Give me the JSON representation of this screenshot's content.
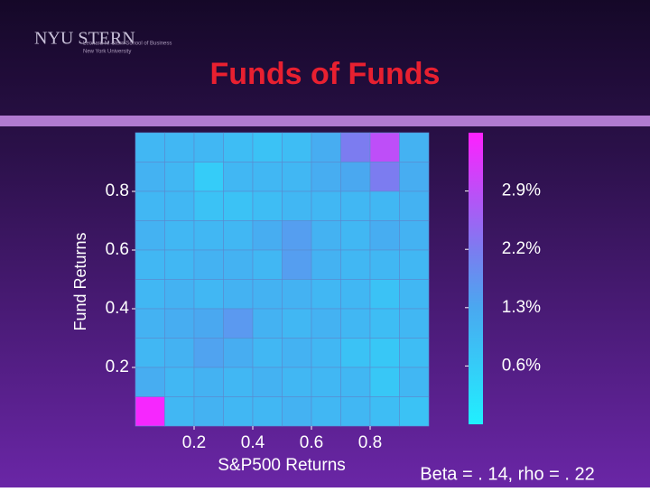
{
  "logo": {
    "name": "NYU STERN",
    "school": "Leonard N. Stern School of Business",
    "university": "New York University"
  },
  "chart_data": {
    "type": "heatmap",
    "title": "Funds of Funds",
    "x_label": "S&P500 Returns",
    "y_label": "Fund Returns",
    "annotation": "Beta = . 14, rho = . 22",
    "xlim": [
      0,
      1
    ],
    "ylim": [
      0,
      1
    ],
    "xticks": [
      0.2,
      0.4,
      0.6,
      0.8
    ],
    "yticks": [
      0.2,
      0.4,
      0.6,
      0.8
    ],
    "values": [
      [
        1.0,
        1.0,
        1.0,
        0.9,
        0.8,
        0.9,
        1.2,
        2.2,
        2.9,
        1.1
      ],
      [
        1.1,
        1.0,
        0.6,
        1.0,
        1.0,
        1.0,
        1.2,
        1.3,
        2.2,
        1.2
      ],
      [
        1.0,
        1.0,
        0.8,
        0.8,
        0.9,
        1.0,
        1.0,
        1.0,
        1.0,
        1.1
      ],
      [
        1.1,
        1.0,
        1.0,
        1.0,
        1.2,
        1.5,
        1.1,
        1.0,
        1.2,
        1.1
      ],
      [
        1.0,
        1.0,
        1.1,
        1.1,
        1.0,
        1.5,
        1.1,
        1.0,
        1.0,
        1.0
      ],
      [
        1.0,
        1.1,
        1.0,
        1.1,
        1.1,
        1.1,
        1.0,
        1.0,
        0.8,
        1.0
      ],
      [
        1.1,
        1.2,
        1.3,
        1.6,
        1.1,
        1.0,
        1.1,
        1.0,
        0.9,
        1.0
      ],
      [
        1.0,
        1.1,
        1.4,
        1.2,
        1.0,
        1.1,
        1.0,
        0.8,
        0.7,
        0.9
      ],
      [
        1.2,
        1.0,
        1.1,
        1.0,
        1.1,
        1.0,
        1.0,
        1.0,
        0.7,
        1.0
      ],
      [
        3.5,
        1.0,
        1.1,
        1.0,
        1.0,
        1.1,
        1.0,
        1.0,
        0.9,
        0.8
      ]
    ],
    "clim": [
      0,
      3.6
    ],
    "colorbar_ticks": [
      {
        "value": 2.9,
        "label": "2.9%"
      },
      {
        "value": 2.2,
        "label": "2.2%"
      },
      {
        "value": 1.3,
        "label": "1.3%"
      },
      {
        "value": 0.6,
        "label": "0.6%"
      }
    ]
  }
}
